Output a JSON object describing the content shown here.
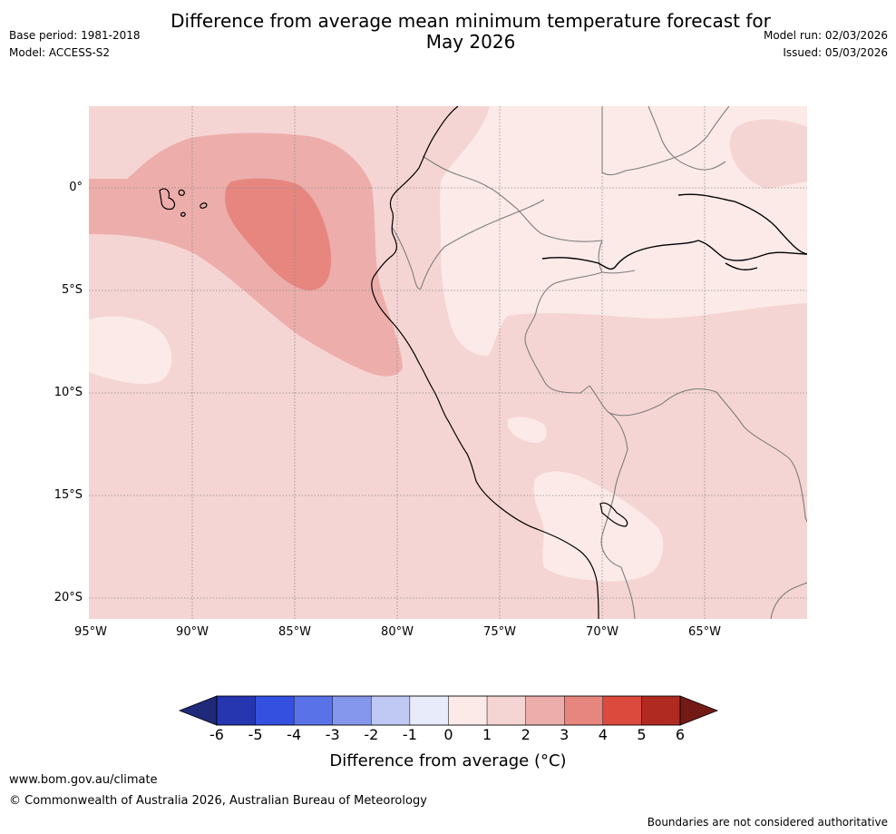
{
  "header": {
    "title_line1": "Difference from average mean minimum temperature forecast for",
    "title_line2": "May 2026",
    "base_period": "Base period: 1981-2018",
    "model": "Model: ACCESS-S2",
    "model_run": "Model run: 02/03/2026",
    "issued": "Issued: 05/03/2026"
  },
  "map": {
    "lat_labels": [
      "0°",
      "5°S",
      "10°S",
      "15°S",
      "20°S"
    ],
    "lon_labels": [
      "95°W",
      "90°W",
      "85°W",
      "80°W",
      "75°W",
      "70°W",
      "65°W"
    ]
  },
  "legend": {
    "ticks": [
      "-6",
      "-5",
      "-4",
      "-3",
      "-2",
      "-1",
      "0",
      "1",
      "2",
      "3",
      "4",
      "5",
      "6"
    ],
    "label": "Difference from average (°C)",
    "colors": [
      "#1f2a7a",
      "#2536b0",
      "#3350e0",
      "#5a72e8",
      "#8597ec",
      "#c0c8f4",
      "#e8ebfa",
      "#fbeae8",
      "#f5d5d3",
      "#edaeab",
      "#e6867f",
      "#dc4a3e",
      "#b02a22",
      "#741a16"
    ]
  },
  "footer": {
    "url": "www.bom.gov.au/climate",
    "copyright": "© Commonwealth of Australia 2026, Australian Bureau of Meteorology",
    "disclaimer": "Boundaries are not considered authoritative"
  }
}
